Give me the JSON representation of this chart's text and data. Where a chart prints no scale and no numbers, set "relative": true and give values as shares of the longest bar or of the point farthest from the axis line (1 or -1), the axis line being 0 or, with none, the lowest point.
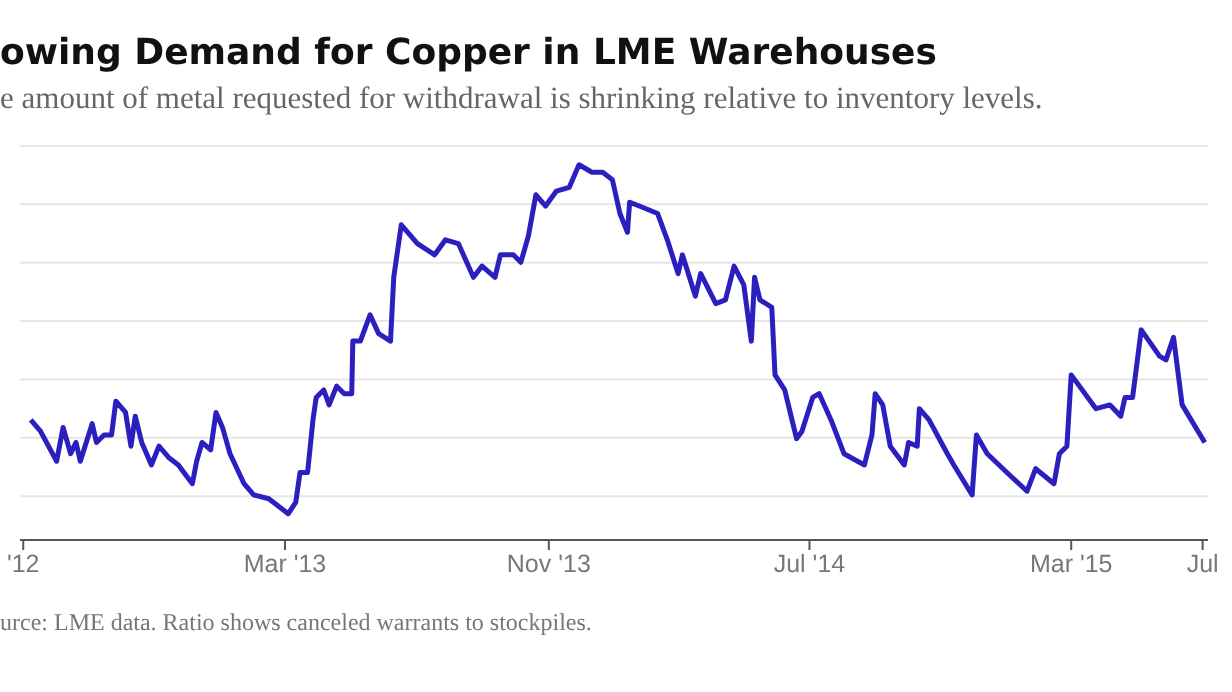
{
  "chart_data": {
    "type": "line",
    "title": "owing Demand for Copper in LME Warehouses",
    "subtitle": "e amount of metal requested for withdrawal is shrinking relative to inventory levels.",
    "annotations": [
      "urce: LME data. Ratio shows canceled warrants to stockpiles."
    ],
    "relative": true,
    "grid": "y",
    "xlim": [
      "2012-06-28",
      "2015-07-06"
    ],
    "xticks": [
      {
        "value": "2012-07-01",
        "label": "'12"
      },
      {
        "value": "2013-03-01",
        "label": "Mar '13"
      },
      {
        "value": "2013-11-01",
        "label": "Nov '13"
      },
      {
        "value": "2014-07-01",
        "label": "Jul '14"
      },
      {
        "value": "2015-03-01",
        "label": "Mar '15"
      },
      {
        "value": "2015-07-01",
        "label": "Jul"
      }
    ],
    "x": [
      "2012-07-08",
      "2012-07-17",
      "2012-08-01",
      "2012-08-07",
      "2012-08-14",
      "2012-08-19",
      "2012-08-23",
      "2012-09-03",
      "2012-09-07",
      "2012-09-14",
      "2012-09-21",
      "2012-09-25",
      "2012-10-04",
      "2012-10-09",
      "2012-10-13",
      "2012-10-19",
      "2012-10-28",
      "2012-11-04",
      "2012-11-13",
      "2012-11-22",
      "2012-12-05",
      "2012-12-09",
      "2012-12-14",
      "2012-12-22",
      "2012-12-27",
      "2013-01-02",
      "2013-01-09",
      "2013-01-22",
      "2013-01-31",
      "2013-02-14",
      "2013-03-04",
      "2013-03-11",
      "2013-03-15",
      "2013-03-22",
      "2013-03-27",
      "2013-03-30",
      "2013-04-06",
      "2013-04-11",
      "2013-04-18",
      "2013-04-25",
      "2013-05-02",
      "2013-05-03",
      "2013-05-10",
      "2013-05-19",
      "2013-05-27",
      "2013-06-07",
      "2013-06-10",
      "2013-06-17",
      "2013-07-02",
      "2013-07-18",
      "2013-07-28",
      "2013-08-09",
      "2013-08-23",
      "2013-08-31",
      "2013-09-12",
      "2013-09-17",
      "2013-09-29",
      "2013-10-06",
      "2013-10-13",
      "2013-10-20",
      "2013-10-29",
      "2013-11-08",
      "2013-11-20",
      "2013-11-29",
      "2013-12-11",
      "2013-12-21",
      "2013-12-30",
      "2014-01-06",
      "2014-01-13",
      "2014-01-15",
      "2014-01-24",
      "2014-02-10",
      "2014-02-19",
      "2014-03-01",
      "2014-03-05",
      "2014-03-17",
      "2014-03-22",
      "2014-04-05",
      "2014-04-14",
      "2014-04-22",
      "2014-05-01",
      "2014-05-08",
      "2014-05-11",
      "2014-05-16",
      "2014-05-27",
      "2014-05-30",
      "2014-06-08",
      "2014-06-19",
      "2014-06-24",
      "2014-07-04",
      "2014-07-10",
      "2014-07-21",
      "2014-08-02",
      "2014-08-21",
      "2014-08-28",
      "2014-08-31",
      "2014-09-07",
      "2014-09-14",
      "2014-09-27",
      "2014-10-01",
      "2014-10-09",
      "2014-10-11",
      "2014-10-20",
      "2014-11-06",
      "2014-11-12",
      "2014-11-29",
      "2014-12-03",
      "2014-12-13",
      "2015-01-04",
      "2015-01-19",
      "2015-01-27",
      "2015-02-13",
      "2015-02-18",
      "2015-02-25",
      "2015-03-01",
      "2015-03-24",
      "2015-04-06",
      "2015-04-16",
      "2015-04-20",
      "2015-04-27",
      "2015-05-05",
      "2015-05-22",
      "2015-05-28",
      "2015-06-04",
      "2015-06-12",
      "2015-07-03"
    ],
    "series": [
      {
        "color": "#2b1fc0",
        "values": [
          0.32,
          0.29,
          0.21,
          0.3,
          0.23,
          0.26,
          0.21,
          0.31,
          0.26,
          0.28,
          0.28,
          0.37,
          0.34,
          0.25,
          0.33,
          0.26,
          0.2,
          0.25,
          0.22,
          0.2,
          0.15,
          0.21,
          0.26,
          0.24,
          0.34,
          0.3,
          0.23,
          0.15,
          0.12,
          0.11,
          0.07,
          0.1,
          0.18,
          0.18,
          0.32,
          0.38,
          0.4,
          0.36,
          0.41,
          0.39,
          0.39,
          0.53,
          0.53,
          0.6,
          0.55,
          0.53,
          0.7,
          0.84,
          0.79,
          0.76,
          0.8,
          0.79,
          0.7,
          0.73,
          0.7,
          0.76,
          0.76,
          0.74,
          0.81,
          0.92,
          0.89,
          0.93,
          0.94,
          1,
          0.98,
          0.98,
          0.96,
          0.87,
          0.82,
          0.9,
          0.89,
          0.87,
          0.8,
          0.71,
          0.76,
          0.65,
          0.71,
          0.63,
          0.64,
          0.73,
          0.68,
          0.53,
          0.7,
          0.64,
          0.62,
          0.44,
          0.4,
          0.27,
          0.29,
          0.38,
          0.39,
          0.32,
          0.23,
          0.2,
          0.28,
          0.39,
          0.36,
          0.25,
          0.2,
          0.26,
          0.25,
          0.35,
          0.32,
          0.23,
          0.2,
          0.12,
          0.28,
          0.23,
          0.17,
          0.13,
          0.19,
          0.15,
          0.23,
          0.25,
          0.44,
          0.35,
          0.36,
          0.33,
          0.38,
          0.38,
          0.56,
          0.49,
          0.48,
          0.54,
          0.36,
          0.26
        ]
      }
    ]
  }
}
